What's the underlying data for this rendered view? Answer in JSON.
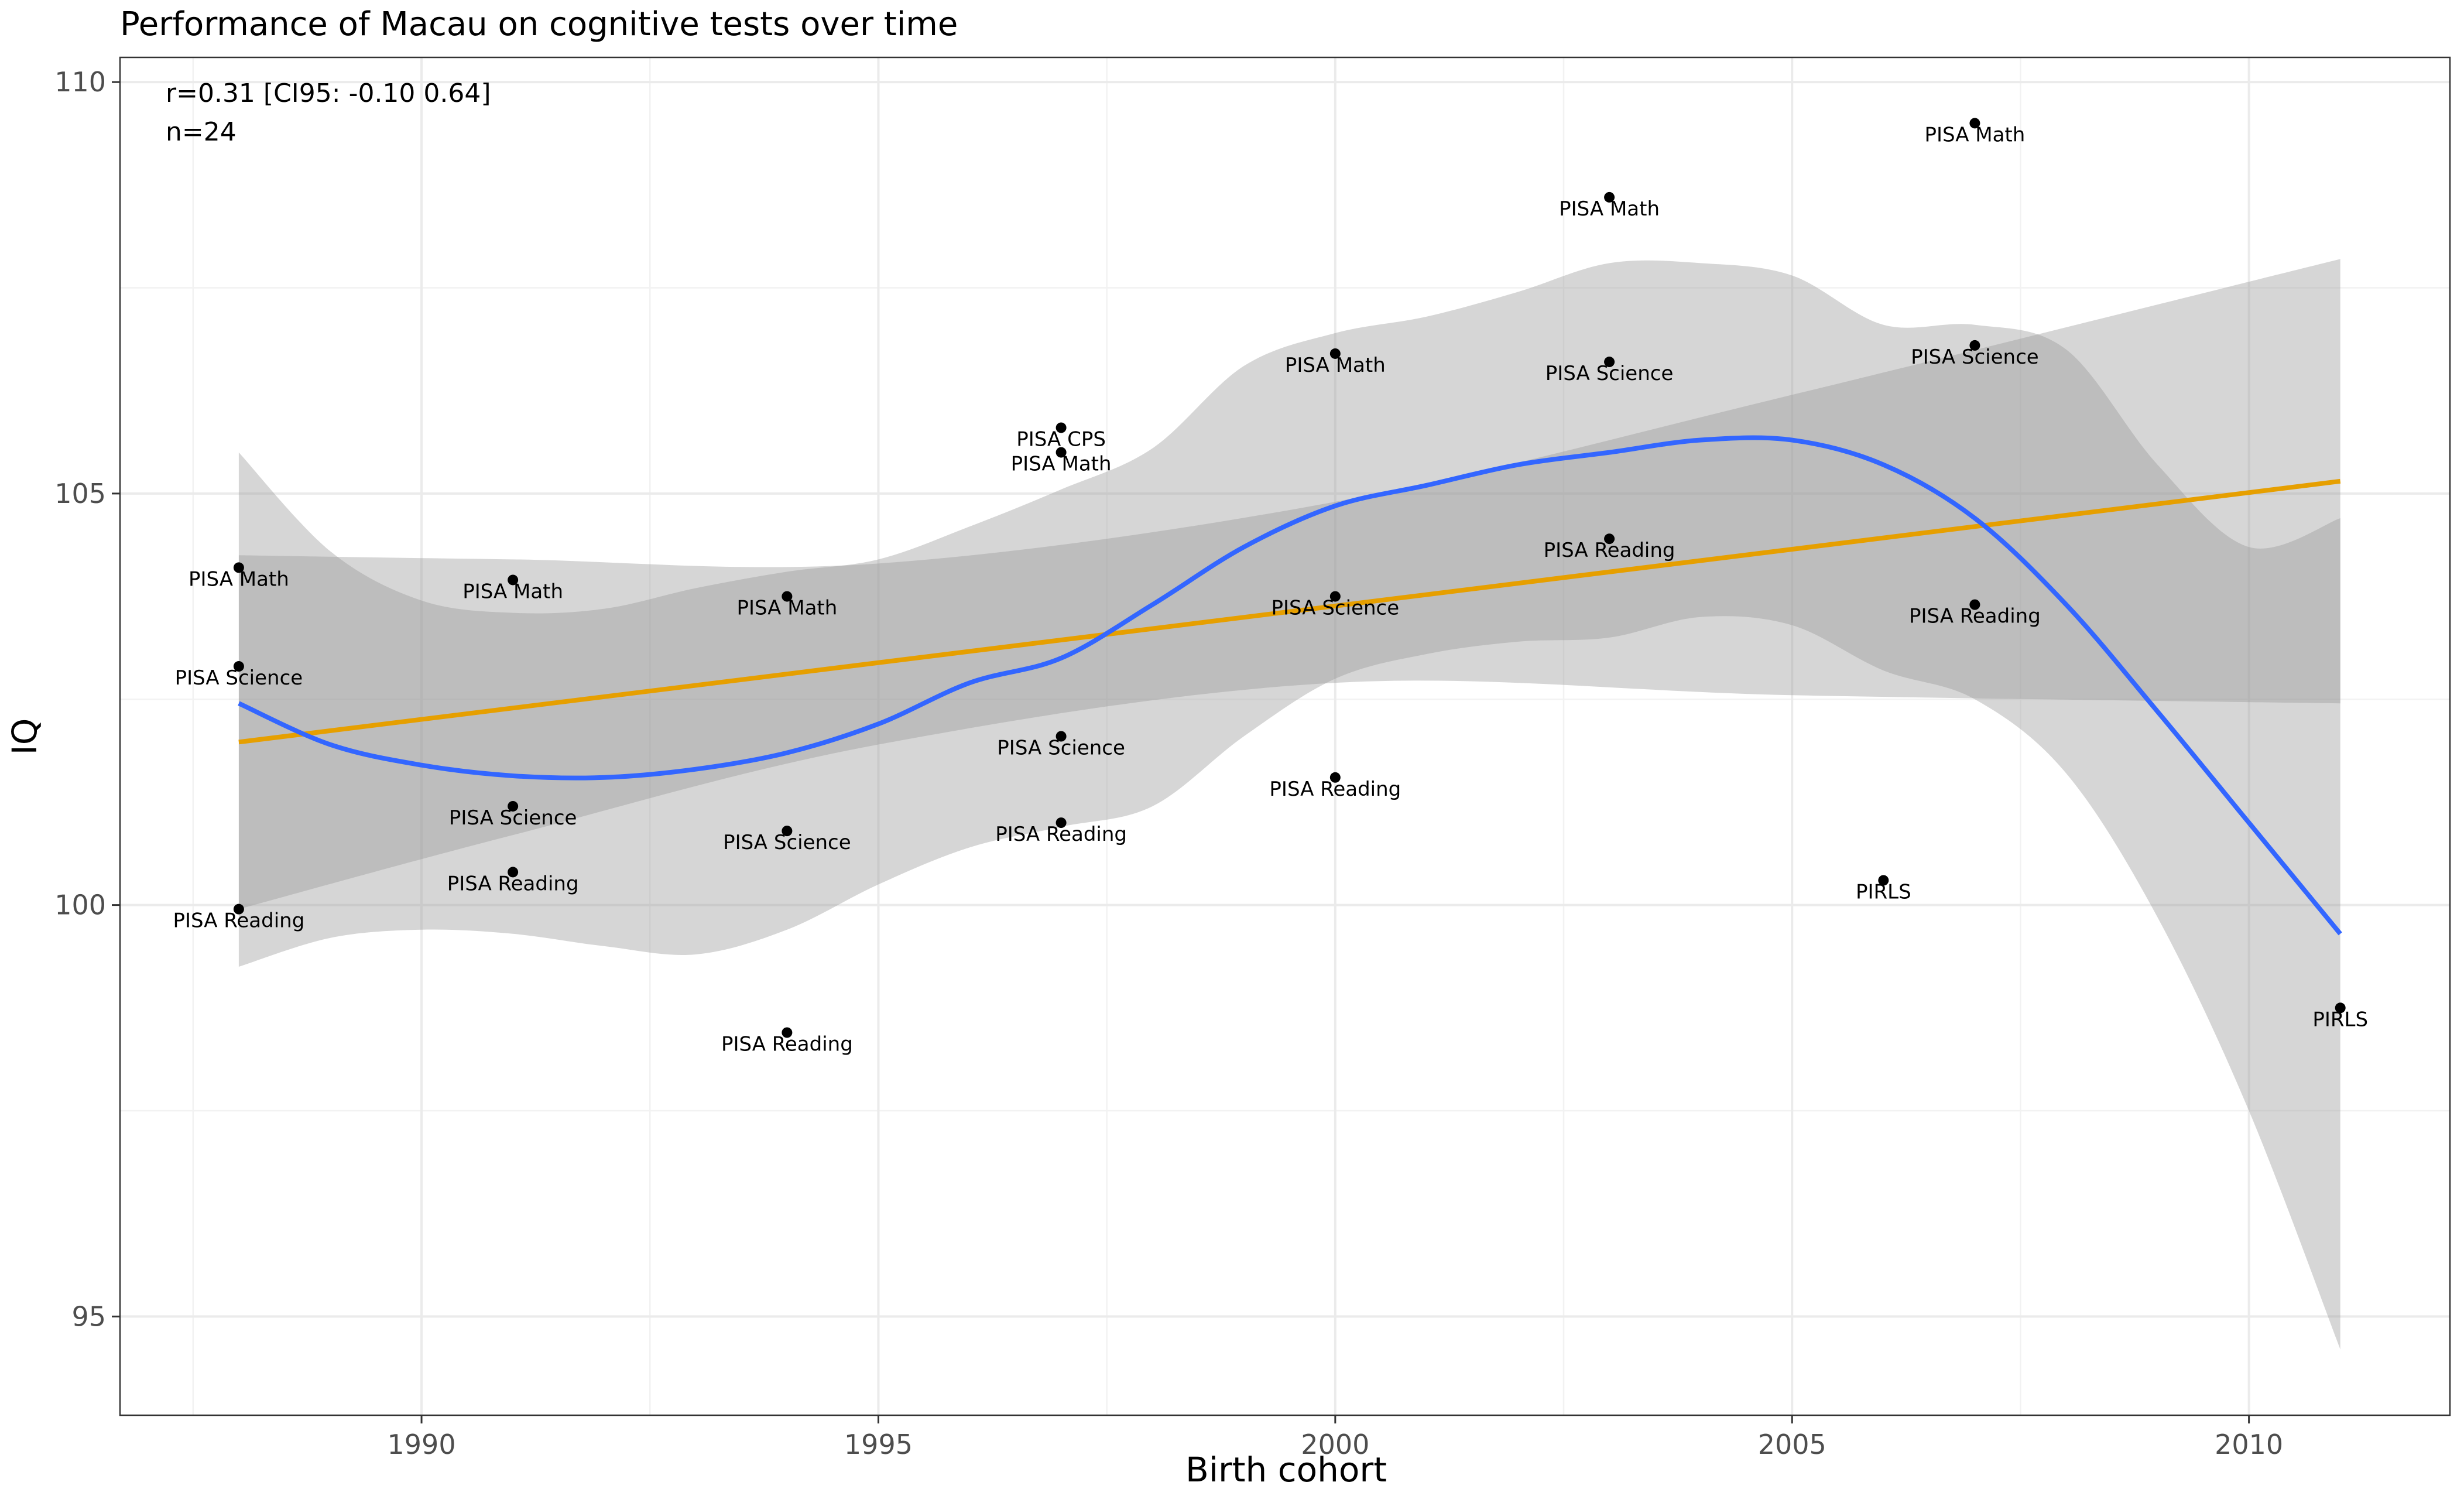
{
  "chart_data": {
    "type": "scatter",
    "title": "Performance of Macau on cognitive tests over time",
    "xlabel": "Birth cohort",
    "ylabel": "IQ",
    "xlim": [
      1986.7,
      2012.2
    ],
    "ylim": [
      93.8,
      110.3
    ],
    "x_ticks": [
      1990,
      1995,
      2000,
      2005,
      2010
    ],
    "y_ticks": [
      95,
      100,
      105,
      110
    ],
    "grid": true,
    "legend": "none",
    "annotations": [
      "r=0.31 [CI95: -0.10 0.64]",
      "n=24"
    ],
    "points": [
      {
        "x": 1988,
        "y": 104.1,
        "label": "PISA Math"
      },
      {
        "x": 1988,
        "y": 102.9,
        "label": "PISA Science"
      },
      {
        "x": 1988,
        "y": 99.95,
        "label": "PISA Reading"
      },
      {
        "x": 1991,
        "y": 103.95,
        "label": "PISA Math"
      },
      {
        "x": 1991,
        "y": 101.2,
        "label": "PISA Science"
      },
      {
        "x": 1991,
        "y": 100.4,
        "label": "PISA Reading"
      },
      {
        "x": 1994,
        "y": 103.75,
        "label": "PISA Math"
      },
      {
        "x": 1994,
        "y": 100.9,
        "label": "PISA Science"
      },
      {
        "x": 1994,
        "y": 98.45,
        "label": "PISA Reading"
      },
      {
        "x": 1997,
        "y": 105.8,
        "label": "PISA CPS"
      },
      {
        "x": 1997,
        "y": 105.5,
        "label": "PISA Math"
      },
      {
        "x": 1997,
        "y": 102.05,
        "label": "PISA Science"
      },
      {
        "x": 1997,
        "y": 101.0,
        "label": "PISA Reading"
      },
      {
        "x": 2000,
        "y": 106.7,
        "label": "PISA Math"
      },
      {
        "x": 2000,
        "y": 103.75,
        "label": "PISA Science"
      },
      {
        "x": 2000,
        "y": 101.55,
        "label": "PISA Reading"
      },
      {
        "x": 2003,
        "y": 108.6,
        "label": "PISA Math"
      },
      {
        "x": 2003,
        "y": 106.6,
        "label": "PISA Science"
      },
      {
        "x": 2003,
        "y": 104.45,
        "label": "PISA Reading"
      },
      {
        "x": 2006,
        "y": 100.3,
        "label": "PIRLS"
      },
      {
        "x": 2007,
        "y": 109.5,
        "label": "PISA Math"
      },
      {
        "x": 2007,
        "y": 106.8,
        "label": "PISA Science"
      },
      {
        "x": 2007,
        "y": 103.65,
        "label": "PISA Reading"
      },
      {
        "x": 2011,
        "y": 98.75,
        "label": "PIRLS"
      }
    ],
    "linear_fit": {
      "color": "#E69F00",
      "line": [
        [
          1988,
          101.98
        ],
        [
          2011,
          105.15
        ]
      ],
      "band": [
        [
          1988,
          99.95,
          104.25
        ],
        [
          1991,
          100.85,
          104.2
        ],
        [
          1995,
          101.95,
          104.15
        ],
        [
          2000,
          102.7,
          104.9
        ],
        [
          2005,
          102.55,
          106.2
        ],
        [
          2011,
          102.45,
          107.85
        ]
      ]
    },
    "loess_fit": {
      "color": "#3366FF",
      "points": [
        [
          1988,
          102.45,
          99.25,
          105.5
        ],
        [
          1989,
          101.95,
          99.6,
          104.3
        ],
        [
          1990,
          101.7,
          99.7,
          103.7
        ],
        [
          1991,
          101.57,
          99.65,
          103.55
        ],
        [
          1992,
          101.55,
          99.5,
          103.6
        ],
        [
          1993,
          101.65,
          99.4,
          103.85
        ],
        [
          1994,
          101.85,
          99.7,
          104.05
        ],
        [
          1995,
          102.2,
          100.25,
          104.2
        ],
        [
          1996,
          102.7,
          100.7,
          104.6
        ],
        [
          1997,
          103.0,
          100.95,
          105.05
        ],
        [
          1998,
          103.65,
          101.2,
          105.55
        ],
        [
          1999,
          104.35,
          102.05,
          106.55
        ],
        [
          2000,
          104.85,
          102.75,
          106.95
        ],
        [
          2001,
          105.1,
          103.05,
          107.15
        ],
        [
          2002,
          105.35,
          103.2,
          107.45
        ],
        [
          2003,
          105.5,
          103.25,
          107.8
        ],
        [
          2004,
          105.65,
          103.5,
          107.8
        ],
        [
          2005,
          105.65,
          103.4,
          107.65
        ],
        [
          2006,
          105.35,
          102.85,
          107.05
        ],
        [
          2007,
          104.7,
          102.5,
          107.05
        ],
        [
          2008,
          103.65,
          101.6,
          106.75
        ],
        [
          2009,
          102.35,
          99.85,
          105.35
        ],
        [
          2010,
          101.0,
          97.5,
          104.35
        ],
        [
          2011,
          99.65,
          94.6,
          104.7
        ]
      ]
    }
  }
}
